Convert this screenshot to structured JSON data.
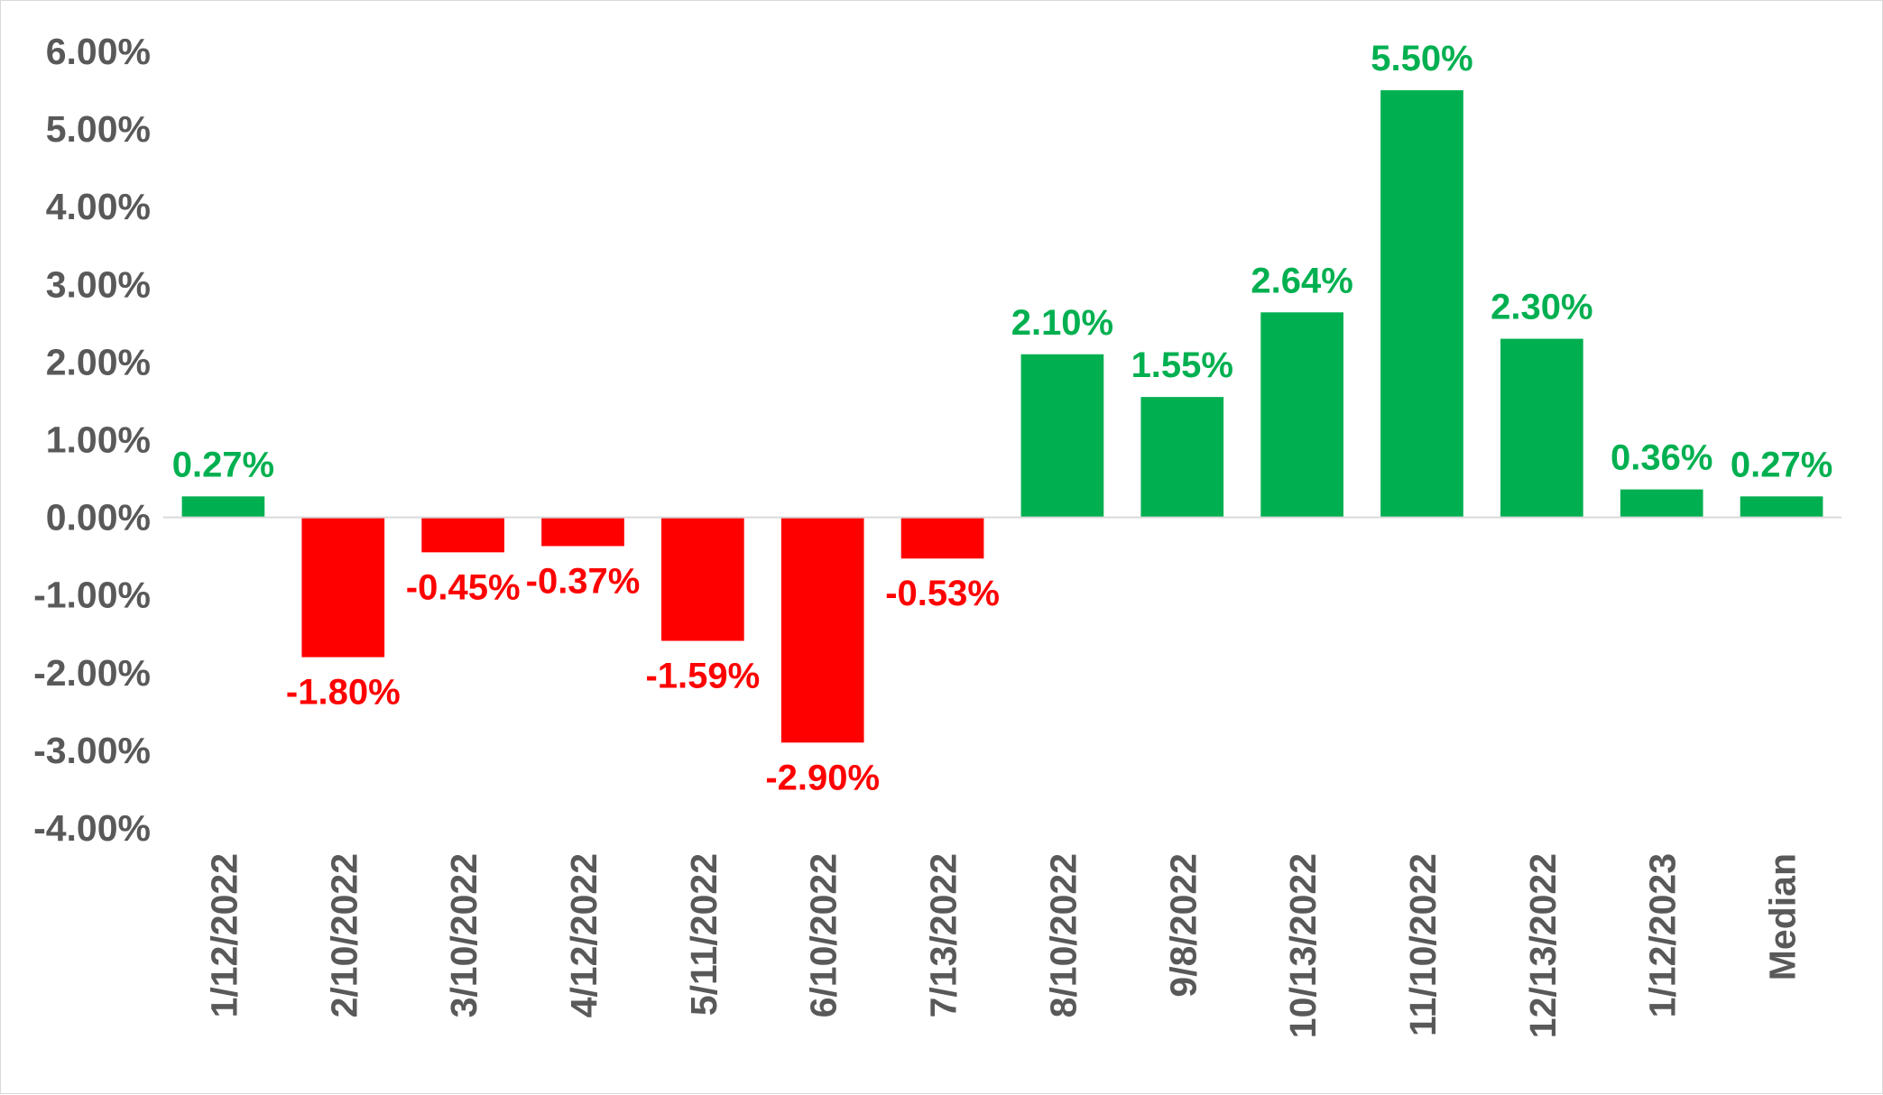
{
  "chart_data": {
    "type": "bar",
    "categories": [
      "1/12/2022",
      "2/10/2022",
      "3/10/2022",
      "4/12/2022",
      "5/11/2022",
      "6/10/2022",
      "7/13/2022",
      "8/10/2022",
      "9/8/2022",
      "10/13/2022",
      "11/10/2022",
      "12/13/2022",
      "1/12/2023",
      "Median"
    ],
    "values": [
      0.27,
      -1.8,
      -0.45,
      -0.37,
      -1.59,
      -2.9,
      -0.53,
      2.1,
      1.55,
      2.64,
      5.5,
      2.3,
      0.36,
      0.27
    ],
    "data_labels": [
      "0.27%",
      "-1.80%",
      "-0.45%",
      "-0.37%",
      "-1.59%",
      "-2.90%",
      "-0.53%",
      "2.10%",
      "1.55%",
      "2.64%",
      "5.50%",
      "2.30%",
      "0.36%",
      "0.27%"
    ],
    "y_ticks": [
      6,
      5,
      4,
      3,
      2,
      1,
      0,
      -1,
      -2,
      -3,
      -4
    ],
    "y_tick_labels": [
      "6.00%",
      "5.00%",
      "4.00%",
      "3.00%",
      "2.00%",
      "1.00%",
      "0.00%",
      "-1.00%",
      "-2.00%",
      "-3.00%",
      "-4.00%"
    ],
    "ylim": [
      -4,
      6
    ],
    "title": "",
    "xlabel": "",
    "ylabel": "",
    "grid": false,
    "legend": "none",
    "colors": {
      "positive": "#00b050",
      "negative": "#ff0000",
      "tick_text": "#595959",
      "axis_line": "#d9d9d9"
    }
  }
}
